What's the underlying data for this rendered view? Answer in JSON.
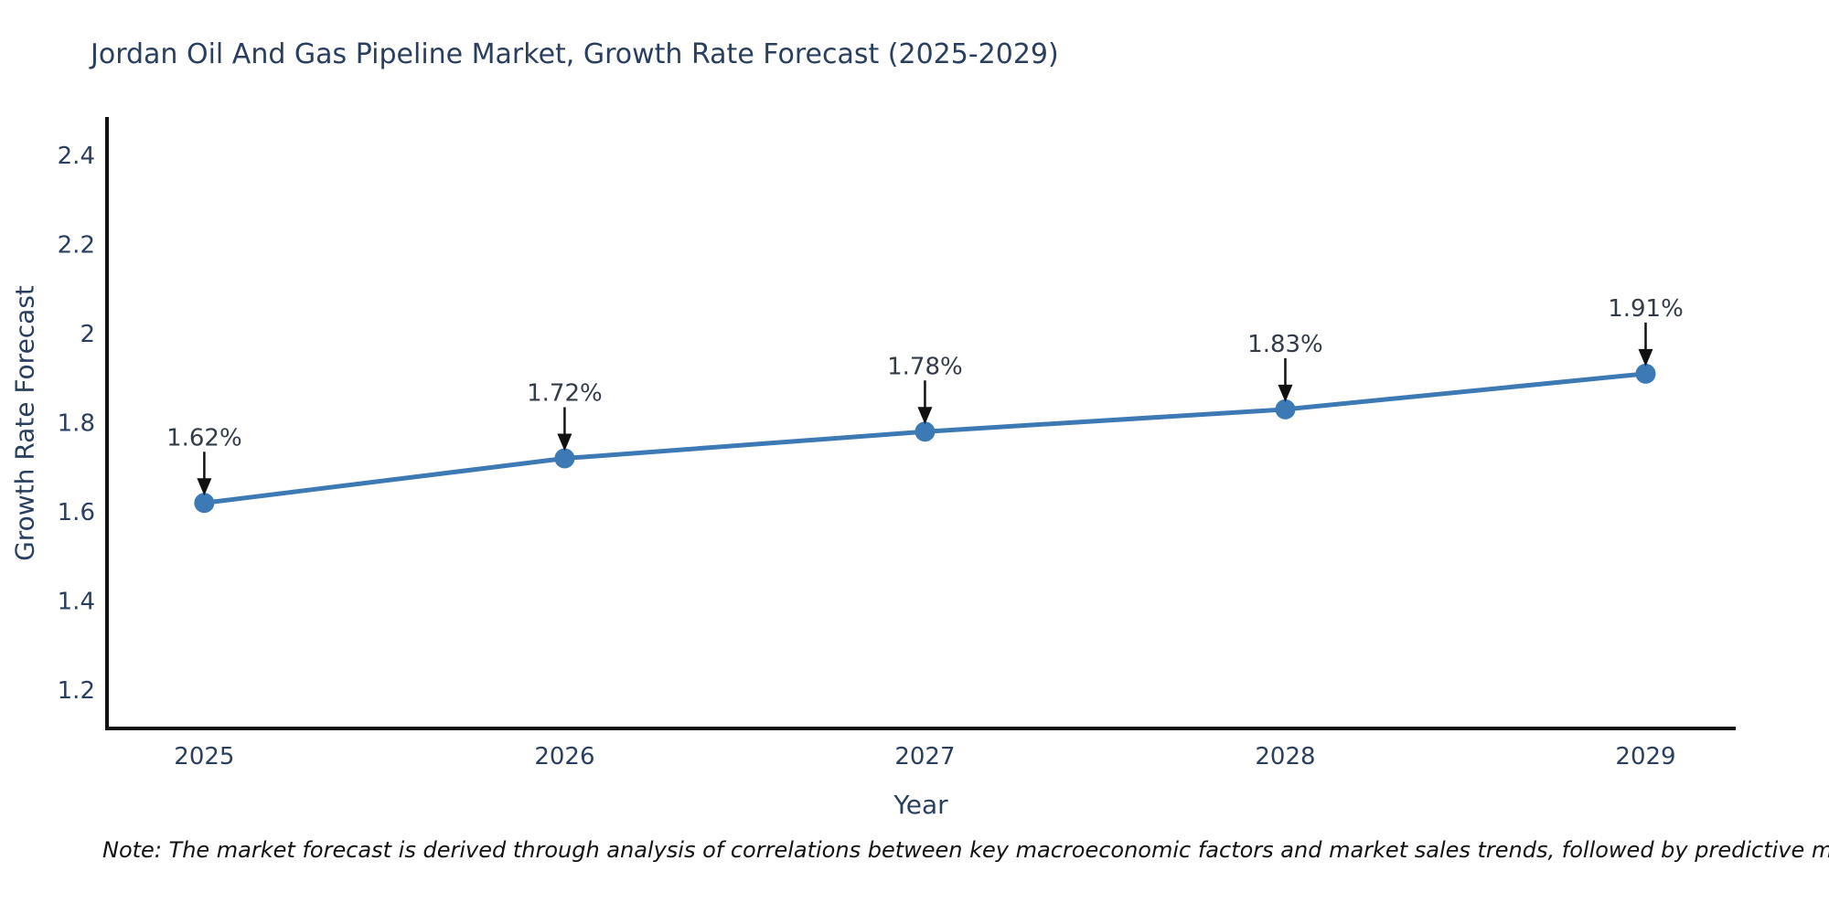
{
  "page": {
    "background": "#ffffff"
  },
  "title": {
    "text": "Jordan Oil And Gas Pipeline Market, Growth Rate Forecast (2025-2029)",
    "color": "#2a3f5f"
  },
  "note": {
    "text": "Note: The market forecast is derived through analysis of correlations between key macroeconomic factors and market sales trends, followed by predictive modeling to project future sales"
  },
  "chart_data": {
    "type": "line",
    "title": "Jordan Oil And Gas Pipeline Market, Growth Rate Forecast (2025-2029)",
    "x": [
      2025,
      2026,
      2027,
      2028,
      2029
    ],
    "categories": [
      "2025",
      "2026",
      "2027",
      "2028",
      "2029"
    ],
    "values": [
      1.62,
      1.72,
      1.78,
      1.83,
      1.91
    ],
    "point_labels": [
      "1.62%",
      "1.72%",
      "1.78%",
      "1.83%",
      "1.91%"
    ],
    "xlabel": "Year",
    "ylabel": "Growth Rate Forecast",
    "xticks": [
      2025,
      2026,
      2027,
      2028,
      2029
    ],
    "xtick_labels": [
      "2025",
      "2026",
      "2027",
      "2028",
      "2029"
    ],
    "yticks": [
      1.2,
      1.4,
      1.6,
      1.8,
      2.0,
      2.2,
      2.4
    ],
    "ytick_labels": [
      "1.2",
      "1.4",
      "1.6",
      "1.8",
      "2",
      "2.2",
      "2.4"
    ],
    "xlim": [
      2024.73,
      2029.25
    ],
    "ylim": [
      1.114,
      2.486
    ],
    "grid": false,
    "legend": "none",
    "annotations_have_arrows": true,
    "line_color": "#3c79b5",
    "marker_color": "#3c79b5",
    "marker_size": 11,
    "line_width": 5,
    "axis_color": "#111111",
    "tick_color": "#2a3f5f",
    "annotation_color": "#333b49",
    "arrow_color": "#111111"
  }
}
